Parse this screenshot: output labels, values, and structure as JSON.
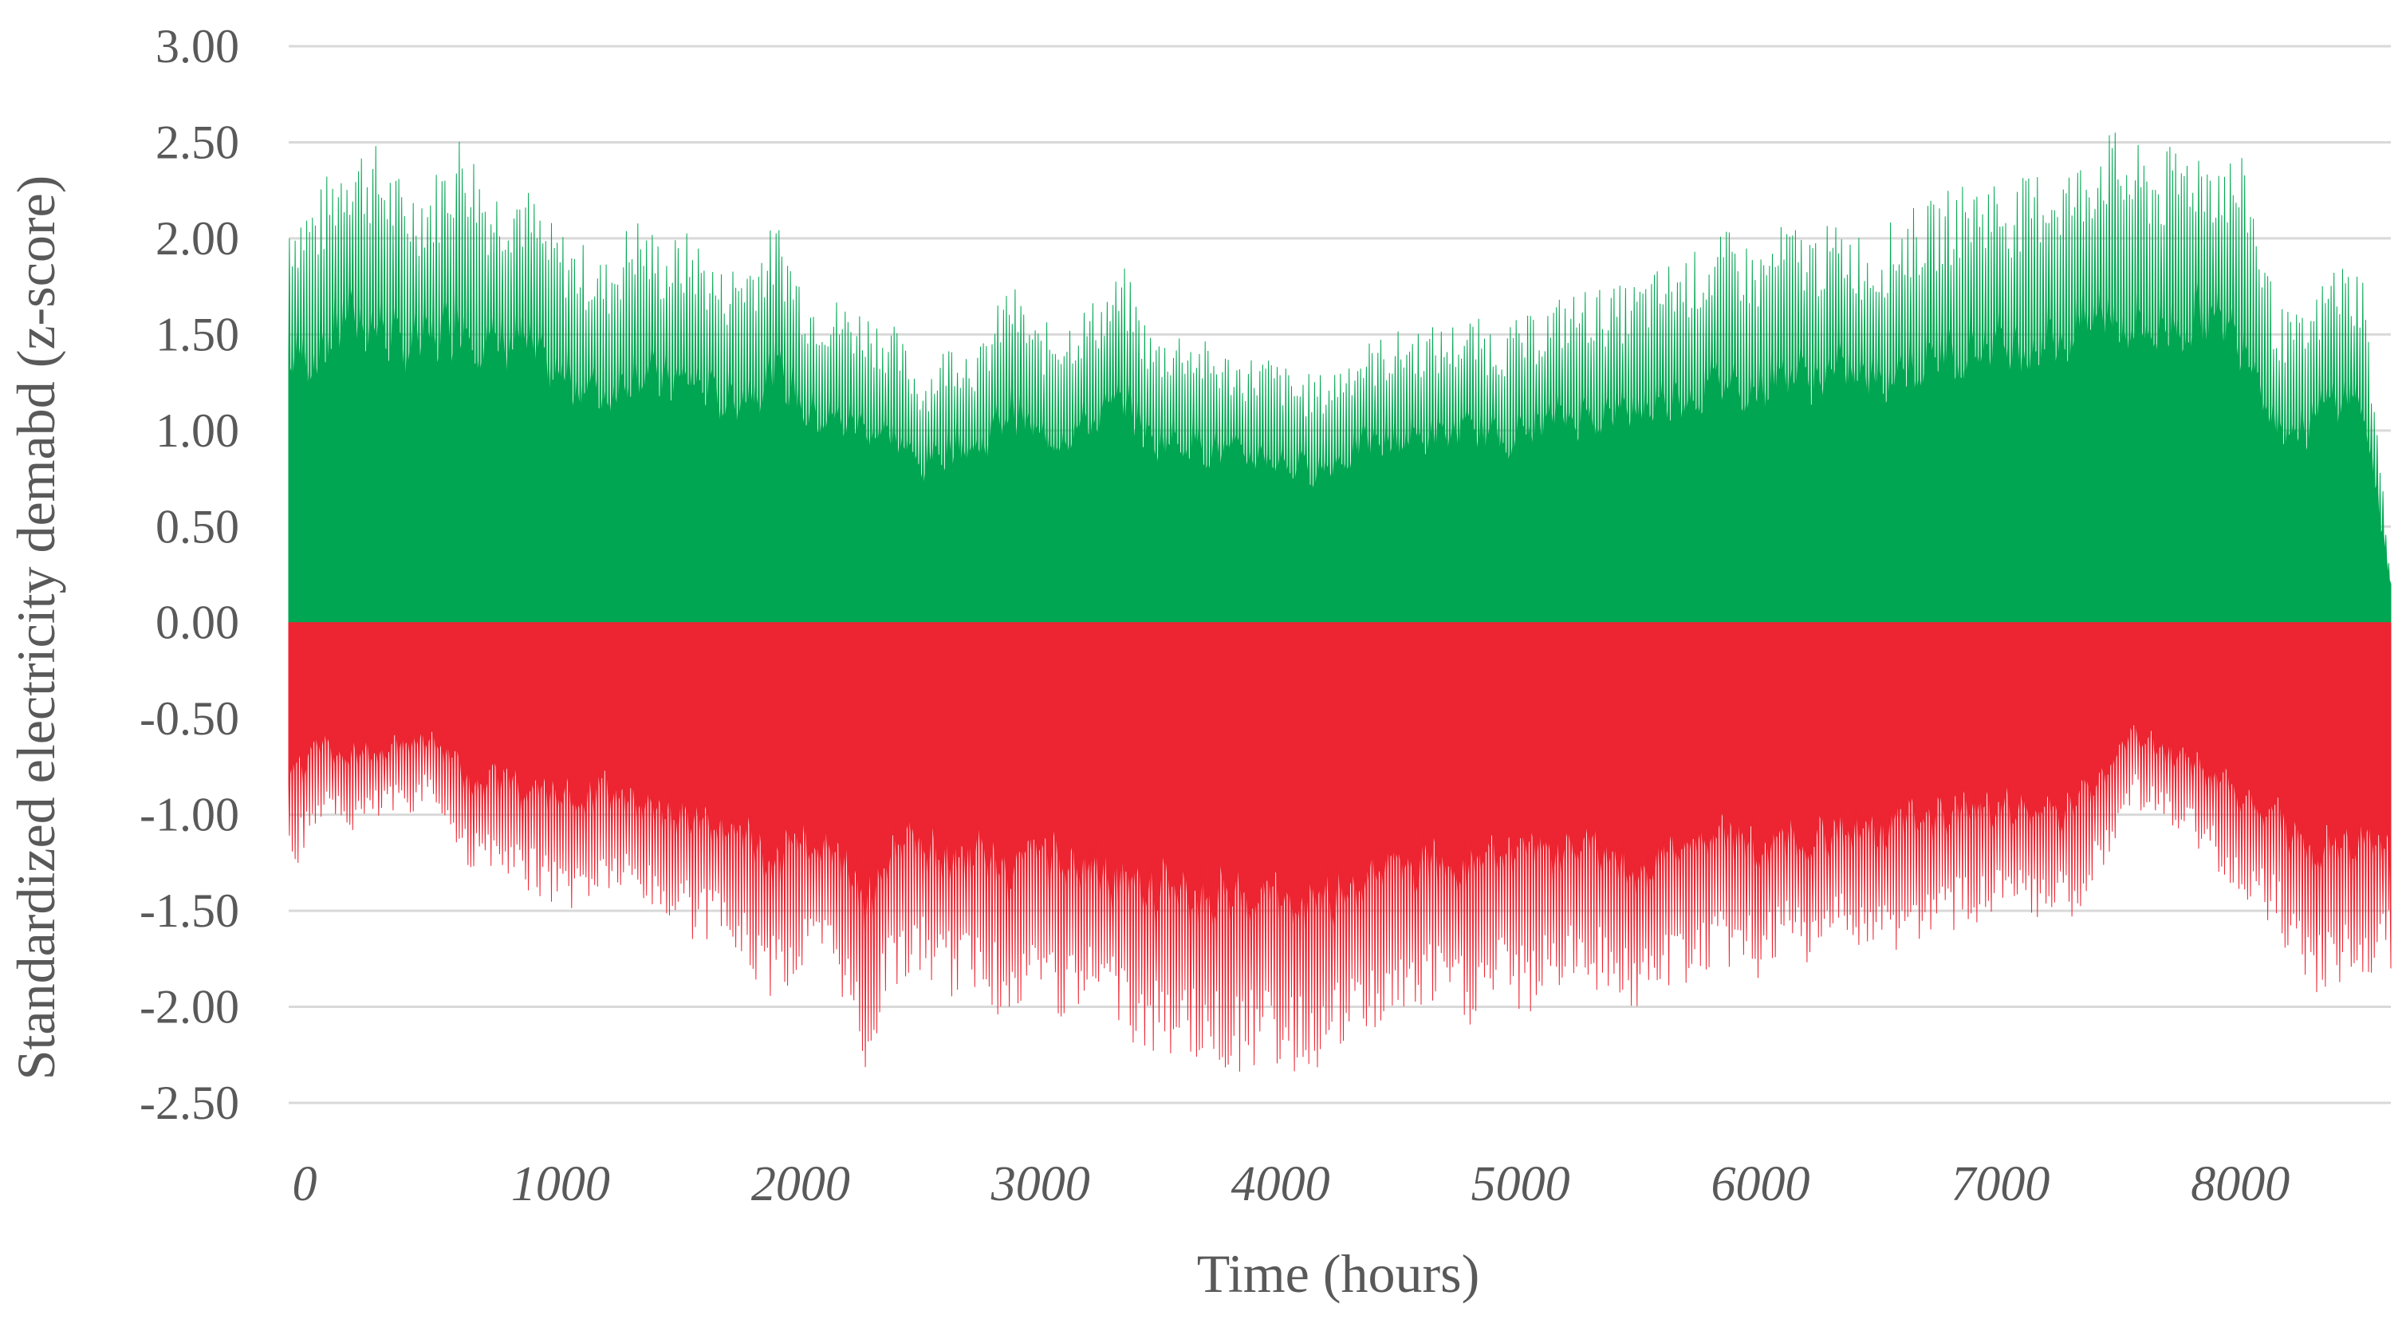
{
  "chart_data": {
    "type": "area",
    "title": "",
    "xlabel": "Time (hours)",
    "ylabel": "Standardized electricity demabd (z-score)",
    "xlim": [
      0,
      8760
    ],
    "ylim": [
      -2.5,
      3.0
    ],
    "x_ticks": [
      "0",
      "1000",
      "2000",
      "3000",
      "4000",
      "5000",
      "6000",
      "7000",
      "8000"
    ],
    "y_ticks": [
      "3.00",
      "2.50",
      "2.00",
      "1.50",
      "1.00",
      "0.50",
      "0.00",
      "-0.50",
      "-1.00",
      "-1.50",
      "-2.00",
      "-2.50"
    ],
    "grid": "horizontal",
    "legend": "none",
    "series": [
      {
        "color": "#00A651",
        "description_of_values": "daily peak z-score of the positive (above-mean) hourly demand, sampled every ~120 hours",
        "x": [
          0,
          120,
          240,
          360,
          480,
          600,
          720,
          840,
          960,
          1080,
          1200,
          1320,
          1440,
          1560,
          1680,
          1800,
          1920,
          2040,
          2160,
          2280,
          2400,
          2520,
          2640,
          2760,
          2880,
          3000,
          3120,
          3240,
          3360,
          3480,
          3600,
          3720,
          3840,
          3960,
          4080,
          4200,
          4320,
          4440,
          4560,
          4680,
          4800,
          4920,
          5040,
          5160,
          5280,
          5400,
          5520,
          5640,
          5760,
          5880,
          6000,
          6120,
          6240,
          6360,
          6480,
          6600,
          6720,
          6840,
          6960,
          7080,
          7200,
          7320,
          7440,
          7560,
          7680,
          7800,
          7920,
          8040,
          8160,
          8280,
          8400,
          8520,
          8640,
          8760
        ],
        "y": [
          2.2,
          2.25,
          2.55,
          2.5,
          2.3,
          2.35,
          2.6,
          2.3,
          2.35,
          2.1,
          2.0,
          1.9,
          2.15,
          2.0,
          2.05,
          1.85,
          1.95,
          2.1,
          1.75,
          1.7,
          1.65,
          1.55,
          1.3,
          1.5,
          1.45,
          1.8,
          1.55,
          1.6,
          1.7,
          1.85,
          1.5,
          1.55,
          1.45,
          1.4,
          1.4,
          1.3,
          1.3,
          1.45,
          1.5,
          1.55,
          1.55,
          1.6,
          1.55,
          1.6,
          1.7,
          1.75,
          1.75,
          1.8,
          1.9,
          1.95,
          2.05,
          1.95,
          2.1,
          2.05,
          2.1,
          2.0,
          2.15,
          2.2,
          2.3,
          2.35,
          2.3,
          2.4,
          2.4,
          2.6,
          2.5,
          2.45,
          2.55,
          2.5,
          2.4,
          1.65,
          1.6,
          1.9,
          1.85,
          0.2
        ]
      },
      {
        "color": "#ED2431",
        "description_of_values": "daily minimum z-score of the negative (below-mean) hourly demand, sampled every ~120 hours",
        "x": [
          0,
          120,
          240,
          360,
          480,
          600,
          720,
          840,
          960,
          1080,
          1200,
          1320,
          1440,
          1560,
          1680,
          1800,
          1920,
          2040,
          2160,
          2280,
          2400,
          2520,
          2640,
          2760,
          2880,
          3000,
          3120,
          3240,
          3360,
          3480,
          3600,
          3720,
          3840,
          3960,
          4080,
          4200,
          4320,
          4440,
          4560,
          4680,
          4800,
          4920,
          5040,
          5160,
          5280,
          5400,
          5520,
          5640,
          5760,
          5880,
          6000,
          6120,
          6240,
          6360,
          6480,
          6600,
          6720,
          6840,
          6960,
          7080,
          7200,
          7320,
          7440,
          7560,
          7680,
          7800,
          7920,
          8040,
          8160,
          8280,
          8400,
          8520,
          8640,
          8760
        ],
        "y": [
          -1.35,
          -1.05,
          -1.1,
          -1.05,
          -1.0,
          -0.95,
          -1.25,
          -1.35,
          -1.4,
          -1.45,
          -1.5,
          -1.4,
          -1.45,
          -1.55,
          -1.65,
          -1.7,
          -1.85,
          -2.0,
          -1.8,
          -1.85,
          -2.35,
          -1.9,
          -1.85,
          -1.95,
          -1.9,
          -2.15,
          -1.9,
          -2.1,
          -2.0,
          -2.2,
          -2.25,
          -2.25,
          -2.3,
          -2.35,
          -2.3,
          -2.35,
          -2.3,
          -2.2,
          -2.1,
          -2.05,
          -2.0,
          -2.1,
          -1.95,
          -2.05,
          -1.9,
          -1.9,
          -1.95,
          -2.05,
          -1.9,
          -1.85,
          -1.8,
          -1.85,
          -1.75,
          -1.8,
          -1.7,
          -1.75,
          -1.7,
          -1.65,
          -1.6,
          -1.55,
          -1.55,
          -1.6,
          -1.55,
          -1.3,
          -0.95,
          -1.05,
          -1.15,
          -1.3,
          -1.45,
          -1.6,
          -1.95,
          -1.9,
          -1.85,
          -1.8
        ]
      }
    ]
  }
}
